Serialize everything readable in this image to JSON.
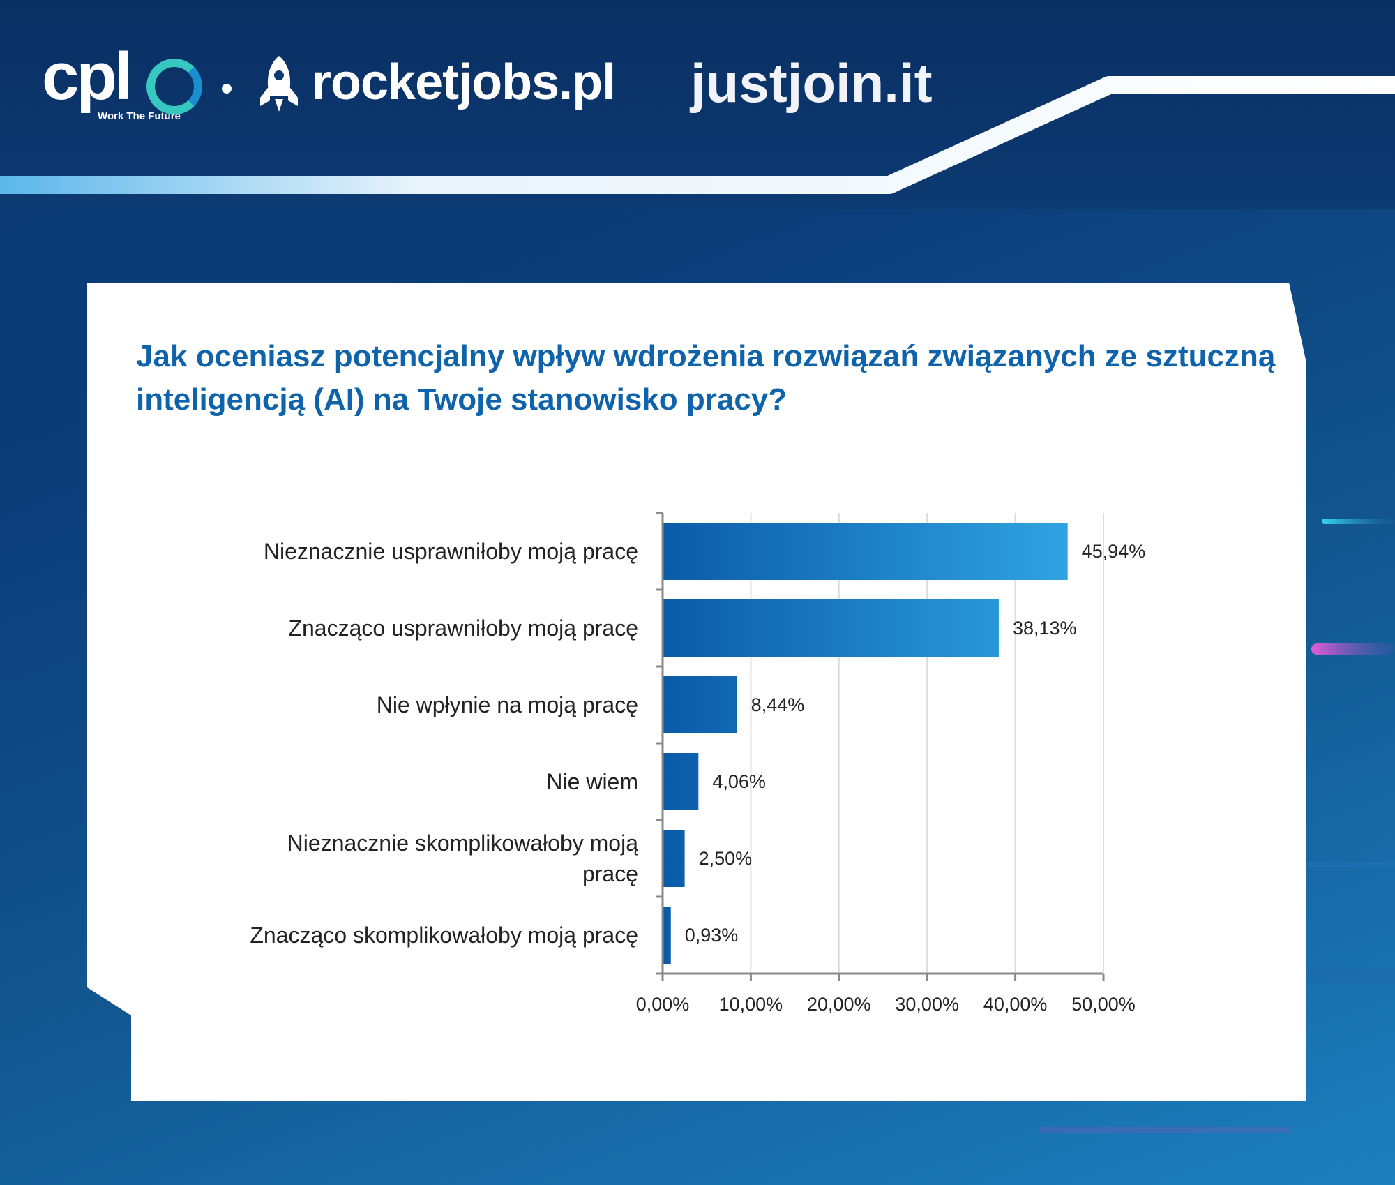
{
  "brands": {
    "cpl": {
      "wordmark": "cpl",
      "tagline": "Work The Future"
    },
    "rocketjobs": {
      "wordmark": "rocketjobs.pl"
    },
    "justjoin": {
      "wordmark": "justjoin.it"
    }
  },
  "colors": {
    "title": "#0f63aa",
    "bar_dark": "#0b5ba8",
    "bar_light": "#2fa3e2",
    "axis": "#8a8a8a",
    "grid": "#dcdcdc"
  },
  "chart_data": {
    "type": "bar",
    "orientation": "horizontal",
    "title": "Jak oceniasz potencjalny wpływ wdrożenia rozwiązań związanych ze sztuczną inteligencją (AI) na Twoje stanowisko pracy?",
    "categories": [
      "Nieznacznie usprawniłoby moją pracę",
      "Znacząco usprawniłoby moją pracę",
      "Nie wpłynie na moją pracę",
      "Nie wiem",
      "Nieznacznie skomplikowałoby moją pracę",
      "Znacząco skomplikowałoby moją pracę"
    ],
    "values": [
      45.94,
      38.13,
      8.44,
      4.06,
      2.5,
      0.93
    ],
    "value_labels": [
      "45,94%",
      "38,13%",
      "8,44%",
      "4,06%",
      "2,50%",
      "0,93%"
    ],
    "xlim": [
      0,
      50
    ],
    "x_ticks": [
      0,
      10,
      20,
      30,
      40,
      50
    ],
    "x_tick_labels": [
      "0,00%",
      "10,00%",
      "20,00%",
      "30,00%",
      "40,00%",
      "50,00%"
    ],
    "xlabel": "",
    "ylabel": "",
    "grid": true,
    "legend": "none"
  }
}
